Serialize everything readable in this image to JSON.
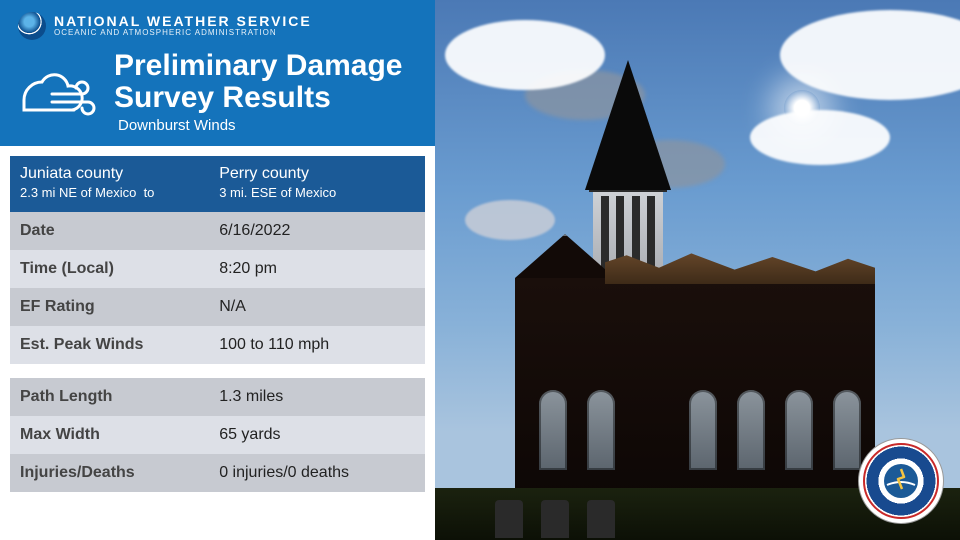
{
  "header": {
    "org": "NATIONAL WEATHER SERVICE",
    "org_sub": "OCEANIC AND ATMOSPHERIC ADMINISTRATION",
    "title_line1": "Preliminary Damage",
    "title_line2": "Survey Results",
    "subtitle": "Downburst Winds",
    "bg_color": "#1473bb",
    "text_color": "#ffffff"
  },
  "location": {
    "from_county": "Juniata county",
    "from_detail": "2.3 mi NE of Mexico",
    "joiner": "to",
    "to_county": "Perry county",
    "to_detail": "3 mi. ESE of Mexico",
    "bg_color": "#1b5a97"
  },
  "rows": [
    {
      "label": "Date",
      "value": "6/16/2022",
      "shade": "a"
    },
    {
      "label": "Time (Local)",
      "value": "8:20 pm",
      "shade": "b"
    },
    {
      "label": "EF Rating",
      "value": "N/A",
      "shade": "a"
    },
    {
      "label": "Est. Peak Winds",
      "value": "100 to 110 mph",
      "shade": "b"
    },
    {
      "label": "Path Length",
      "value": "1.3 miles",
      "shade": "a"
    },
    {
      "label": "Max Width",
      "value": "65 yards",
      "shade": "b"
    },
    {
      "label": "Injuries/Deaths",
      "value": "0 injuries/0 deaths",
      "shade": "a"
    }
  ],
  "colors": {
    "shade_a": "#c7cad1",
    "shade_b": "#dde0e7",
    "label_color": "#444444",
    "value_color": "#222222"
  },
  "seal": {
    "label": "NATIONAL WEATHER SERVICE"
  }
}
